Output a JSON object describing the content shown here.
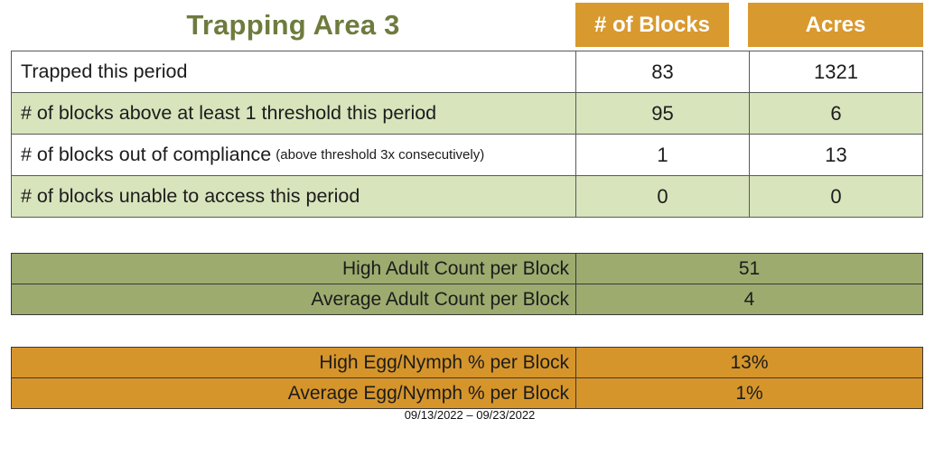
{
  "title": "Trapping Area 3",
  "period": "09/13/2022 – 09/23/2022",
  "colors": {
    "header_orange": "#D8992E",
    "egg_table_orange": "#D6952B",
    "row_light_green": "#D8E4BC",
    "adult_table_olive": "#9DAB6F",
    "title_olive": "#6E7B3E",
    "header_text": "#ffffff"
  },
  "main_table": {
    "columns": [
      "# of Blocks",
      "Acres"
    ],
    "rows": [
      {
        "label": "Trapped this period",
        "note": "",
        "blocks": "83",
        "acres": "1321"
      },
      {
        "label": "# of blocks above at least 1 threshold this period",
        "note": "",
        "blocks": "95",
        "acres": "6"
      },
      {
        "label": "# of blocks out of compliance",
        "note": "(above threshold 3x consecutively)",
        "blocks": "1",
        "acres": "13"
      },
      {
        "label": "# of blocks unable to access this period",
        "note": "",
        "blocks": "0",
        "acres": "0"
      }
    ]
  },
  "adult_table": {
    "rows": [
      {
        "label": "High Adult Count per Block",
        "value": "51"
      },
      {
        "label": "Average Adult Count per Block",
        "value": "4"
      }
    ]
  },
  "egg_table": {
    "rows": [
      {
        "label": "High Egg/Nymph % per Block",
        "value": "13%"
      },
      {
        "label": "Average Egg/Nymph % per Block",
        "value": "1%"
      }
    ]
  }
}
